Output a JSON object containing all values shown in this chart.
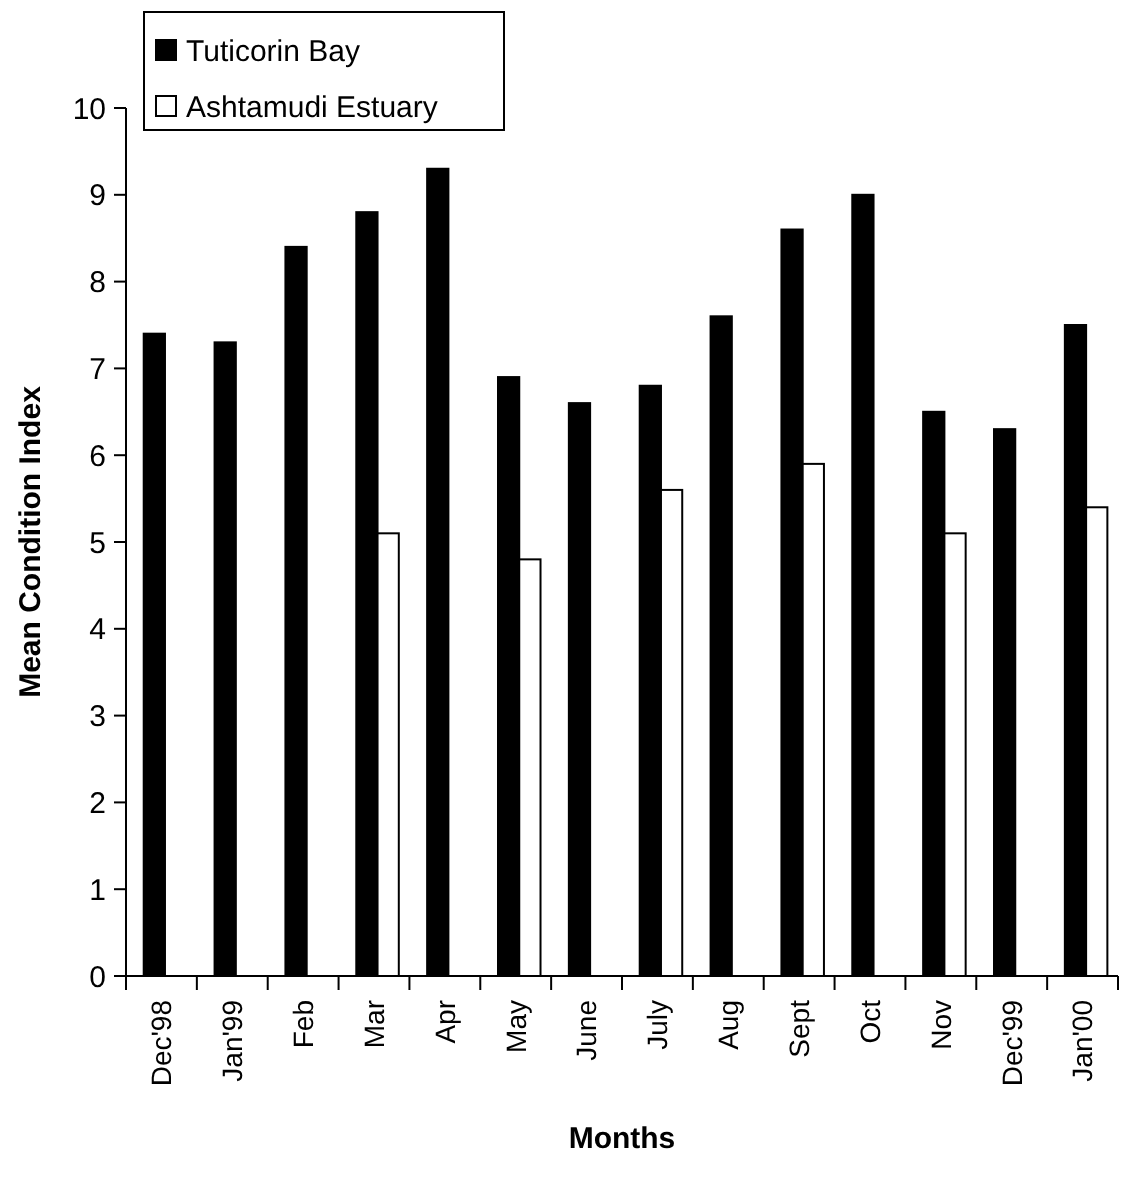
{
  "chart_data": {
    "type": "bar",
    "xlabel": "Months",
    "ylabel": "Mean Condition Index",
    "categories": [
      "Dec'98",
      "Jan'99",
      "Feb",
      "Mar",
      "Apr",
      "May",
      "June",
      "July",
      "Aug",
      "Sept",
      "Oct",
      "Nov",
      "Dec'99",
      "Jan'00"
    ],
    "series": [
      {
        "name": "Tuticorin Bay",
        "color": "#000000",
        "values": [
          7.4,
          7.3,
          8.4,
          8.8,
          9.3,
          6.9,
          6.6,
          6.8,
          7.6,
          8.6,
          9.0,
          6.5,
          6.3,
          7.5
        ]
      },
      {
        "name": "Ashtamudi Estuary",
        "color": "#ffffff",
        "values": [
          null,
          null,
          null,
          5.1,
          null,
          4.8,
          null,
          5.6,
          null,
          5.9,
          null,
          5.1,
          null,
          5.4
        ]
      }
    ],
    "ylim": [
      0,
      10
    ],
    "yticks": [
      0,
      1,
      2,
      3,
      4,
      5,
      6,
      7,
      8,
      9,
      10
    ],
    "grid": false,
    "legend": "top left"
  }
}
